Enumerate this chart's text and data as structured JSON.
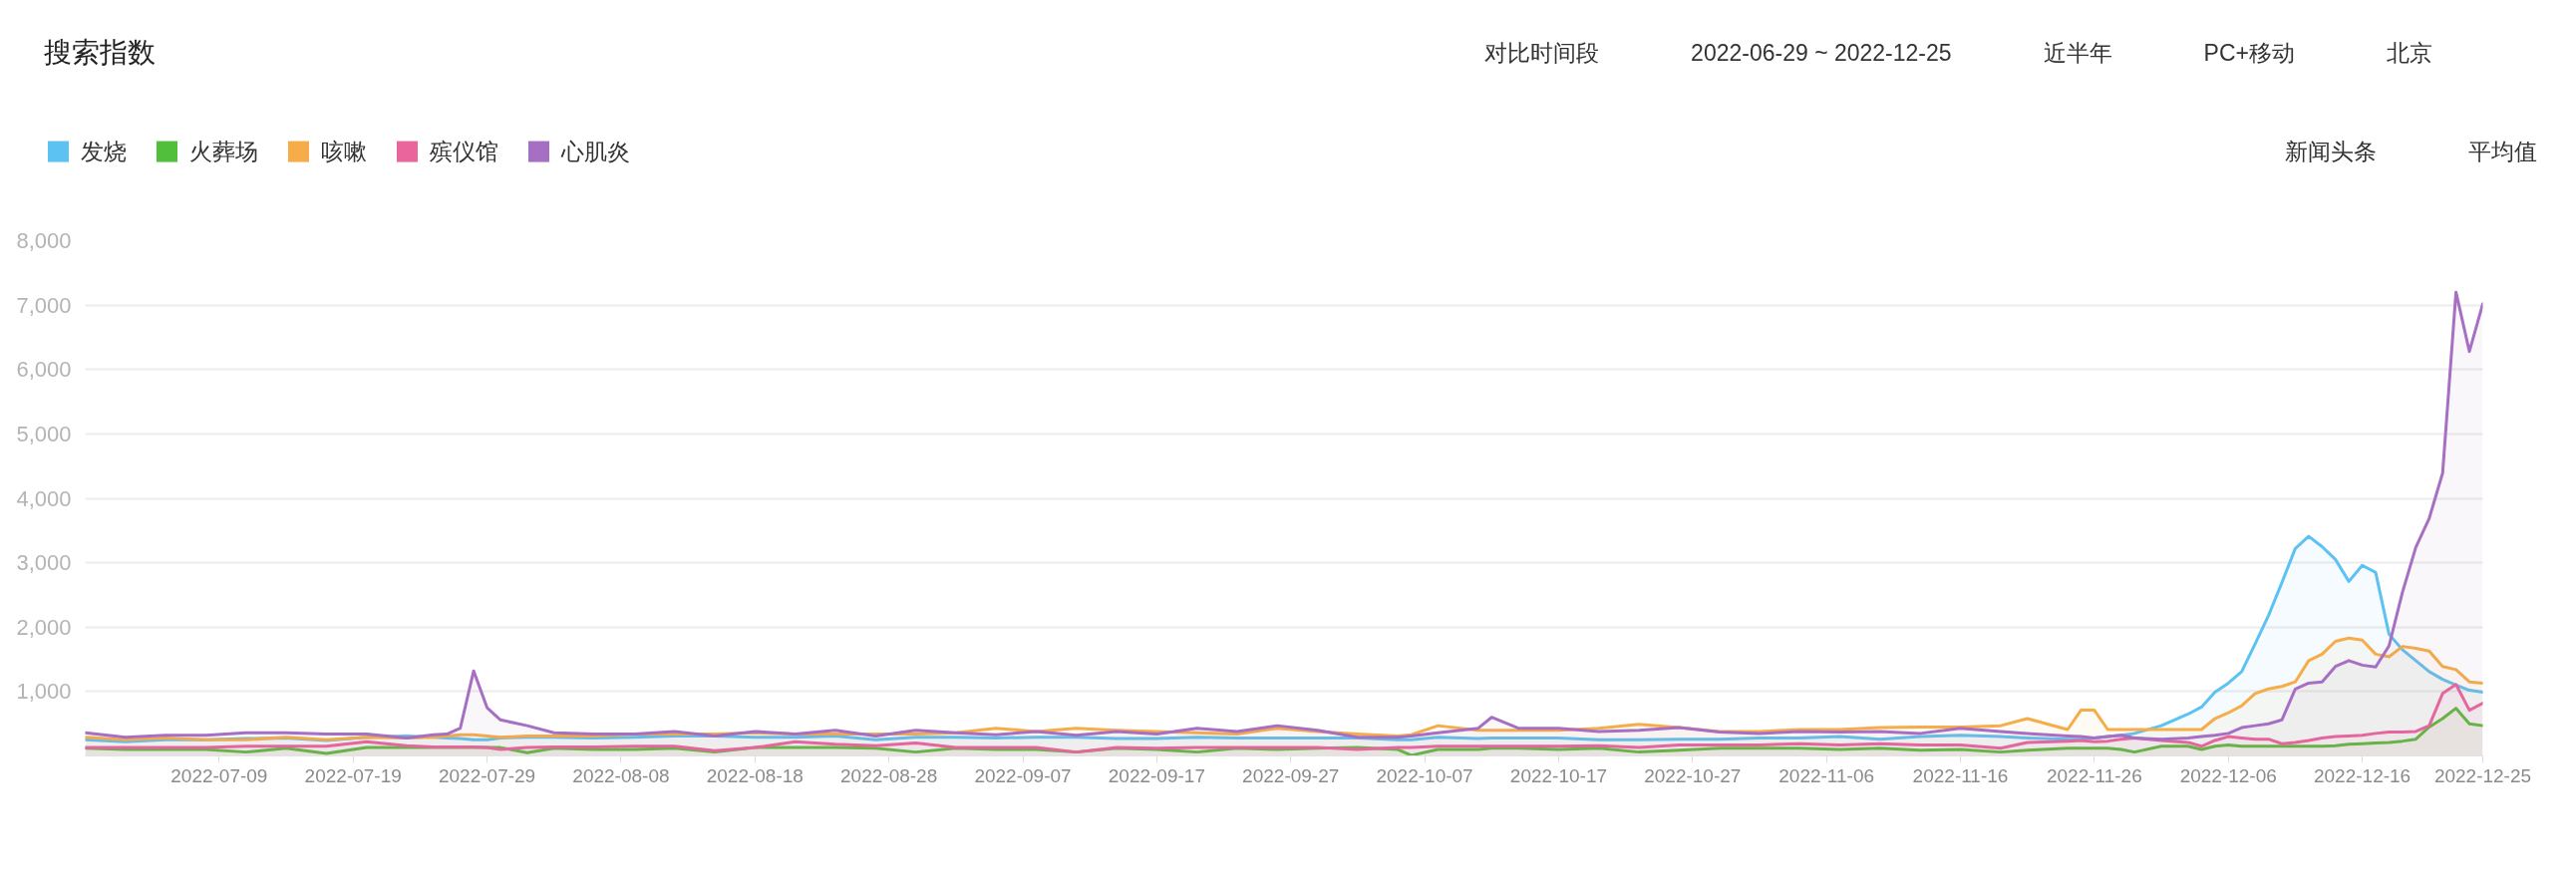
{
  "chart_data": {
    "type": "area",
    "title": "搜索指数",
    "annotations": [
      "对比时间段",
      "2022-06-29 ~ 2022-12-25",
      "近半年",
      "PC+移动",
      "北京",
      "新闻头条",
      "平均值"
    ],
    "legend": "top left",
    "grid": "y",
    "xlim": [
      "2022-06-29",
      "2022-12-25"
    ],
    "xticks": [
      "2022-07-09",
      "2022-07-19",
      "2022-07-29",
      "2022-08-08",
      "2022-08-18",
      "2022-08-28",
      "2022-09-07",
      "2022-09-17",
      "2022-09-27",
      "2022-10-07",
      "2022-10-17",
      "2022-10-27",
      "2022-11-06",
      "2022-11-16",
      "2022-11-26",
      "2022-12-06",
      "2022-12-16",
      "2022-12-25"
    ],
    "ylim": [
      0,
      8000
    ],
    "yticks": [
      {
        "value": 1000,
        "label": "1,000"
      },
      {
        "value": 2000,
        "label": "2,000"
      },
      {
        "value": 3000,
        "label": "3,000"
      },
      {
        "value": 4000,
        "label": "4,000"
      },
      {
        "value": 5000,
        "label": "5,000"
      },
      {
        "value": 6000,
        "label": "6,000"
      },
      {
        "value": 7000,
        "label": "7,000"
      },
      {
        "value": 8000,
        "label": "8,000"
      }
    ],
    "x": [
      "2022-06-29",
      "2022-07-02",
      "2022-07-05",
      "2022-07-08",
      "2022-07-11",
      "2022-07-14",
      "2022-07-17",
      "2022-07-20",
      "2022-07-23",
      "2022-07-25",
      "2022-07-26",
      "2022-07-27",
      "2022-07-28",
      "2022-07-29",
      "2022-07-30",
      "2022-08-01",
      "2022-08-03",
      "2022-08-06",
      "2022-08-09",
      "2022-08-12",
      "2022-08-15",
      "2022-08-18",
      "2022-08-21",
      "2022-08-24",
      "2022-08-27",
      "2022-08-30",
      "2022-09-02",
      "2022-09-05",
      "2022-09-08",
      "2022-09-11",
      "2022-09-14",
      "2022-09-17",
      "2022-09-20",
      "2022-09-23",
      "2022-09-26",
      "2022-09-29",
      "2022-10-02",
      "2022-10-05",
      "2022-10-06",
      "2022-10-08",
      "2022-10-11",
      "2022-10-12",
      "2022-10-14",
      "2022-10-17",
      "2022-10-20",
      "2022-10-23",
      "2022-10-26",
      "2022-10-29",
      "2022-11-01",
      "2022-11-04",
      "2022-11-07",
      "2022-11-10",
      "2022-11-13",
      "2022-11-16",
      "2022-11-19",
      "2022-11-21",
      "2022-11-24",
      "2022-11-25",
      "2022-11-26",
      "2022-11-27",
      "2022-11-28",
      "2022-11-29",
      "2022-12-01",
      "2022-12-03",
      "2022-12-04",
      "2022-12-05",
      "2022-12-06",
      "2022-12-07",
      "2022-12-08",
      "2022-12-09",
      "2022-12-10",
      "2022-12-11",
      "2022-12-12",
      "2022-12-13",
      "2022-12-14",
      "2022-12-15",
      "2022-12-16",
      "2022-12-17",
      "2022-12-18",
      "2022-12-19",
      "2022-12-20",
      "2022-12-21",
      "2022-12-22",
      "2022-12-23",
      "2022-12-24",
      "2022-12-25"
    ],
    "series": [
      {
        "name": "发烧",
        "color": "#5bc2f2",
        "values": [
          250,
          220,
          250,
          250,
          270,
          280,
          240,
          290,
          310,
          290,
          280,
          270,
          250,
          250,
          280,
          290,
          290,
          280,
          290,
          310,
          310,
          290,
          290,
          310,
          250,
          290,
          290,
          280,
          290,
          290,
          270,
          270,
          290,
          280,
          280,
          280,
          280,
          250,
          250,
          290,
          270,
          280,
          280,
          280,
          250,
          250,
          260,
          260,
          280,
          280,
          300,
          260,
          300,
          320,
          300,
          280,
          260,
          260,
          280,
          300,
          320,
          350,
          470,
          650,
          760,
          990,
          1130,
          1310,
          1740,
          2180,
          2690,
          3220,
          3410,
          3250,
          3050,
          2710,
          2960,
          2850,
          1890,
          1650,
          1480,
          1310,
          1190,
          1100,
          1020,
          990
        ]
      },
      {
        "name": "火葬场",
        "color": "#52bf3c",
        "values": [
          120,
          100,
          100,
          100,
          60,
          120,
          40,
          130,
          130,
          130,
          130,
          130,
          130,
          130,
          130,
          50,
          120,
          100,
          100,
          120,
          60,
          130,
          130,
          130,
          120,
          60,
          120,
          100,
          100,
          60,
          120,
          100,
          60,
          120,
          100,
          120,
          130,
          100,
          10,
          100,
          100,
          120,
          120,
          100,
          120,
          60,
          90,
          120,
          120,
          120,
          100,
          120,
          90,
          100,
          60,
          90,
          120,
          120,
          120,
          120,
          100,
          60,
          150,
          150,
          100,
          150,
          170,
          150,
          150,
          150,
          150,
          150,
          150,
          150,
          160,
          180,
          190,
          200,
          210,
          230,
          260,
          450,
          580,
          740,
          500,
          470
        ]
      },
      {
        "name": "咳嗽",
        "color": "#f6ad49",
        "values": [
          290,
          250,
          280,
          250,
          250,
          290,
          250,
          290,
          280,
          290,
          310,
          330,
          330,
          310,
          290,
          310,
          310,
          310,
          340,
          340,
          340,
          360,
          340,
          340,
          340,
          340,
          360,
          430,
          380,
          430,
          400,
          380,
          360,
          340,
          430,
          380,
          340,
          310,
          330,
          470,
          400,
          400,
          400,
          400,
          430,
          490,
          440,
          380,
          380,
          410,
          410,
          440,
          450,
          450,
          470,
          580,
          410,
          710,
          710,
          410,
          410,
          410,
          410,
          410,
          410,
          580,
          670,
          780,
          970,
          1040,
          1080,
          1150,
          1480,
          1580,
          1780,
          1830,
          1800,
          1580,
          1540,
          1700,
          1670,
          1630,
          1390,
          1340,
          1150,
          1130
        ]
      },
      {
        "name": "殡仪馆",
        "color": "#e9659c",
        "values": [
          130,
          130,
          130,
          130,
          150,
          150,
          150,
          220,
          160,
          140,
          140,
          140,
          140,
          130,
          100,
          130,
          140,
          140,
          150,
          150,
          80,
          130,
          220,
          180,
          160,
          200,
          130,
          130,
          130,
          60,
          130,
          120,
          130,
          130,
          130,
          130,
          100,
          130,
          130,
          150,
          150,
          150,
          150,
          150,
          160,
          130,
          170,
          170,
          170,
          190,
          170,
          190,
          170,
          170,
          120,
          210,
          230,
          240,
          220,
          230,
          260,
          280,
          240,
          210,
          150,
          240,
          300,
          280,
          260,
          260,
          190,
          210,
          240,
          280,
          300,
          310,
          320,
          350,
          370,
          370,
          380,
          470,
          970,
          1110,
          710,
          820
        ]
      },
      {
        "name": "心肌炎",
        "color": "#a66fc3",
        "values": [
          360,
          290,
          320,
          320,
          360,
          360,
          340,
          340,
          280,
          330,
          340,
          430,
          1320,
          750,
          560,
          470,
          360,
          340,
          340,
          380,
          310,
          380,
          340,
          400,
          310,
          400,
          360,
          330,
          380,
          320,
          380,
          340,
          430,
          380,
          470,
          400,
          290,
          290,
          310,
          360,
          430,
          600,
          430,
          430,
          380,
          400,
          440,
          370,
          350,
          380,
          370,
          380,
          350,
          430,
          380,
          350,
          310,
          300,
          280,
          300,
          320,
          280,
          260,
          280,
          300,
          320,
          350,
          440,
          470,
          500,
          560,
          1040,
          1130,
          1150,
          1390,
          1480,
          1410,
          1380,
          1710,
          2540,
          3240,
          3690,
          4390,
          7200,
          6280,
          7020
        ]
      }
    ]
  }
}
